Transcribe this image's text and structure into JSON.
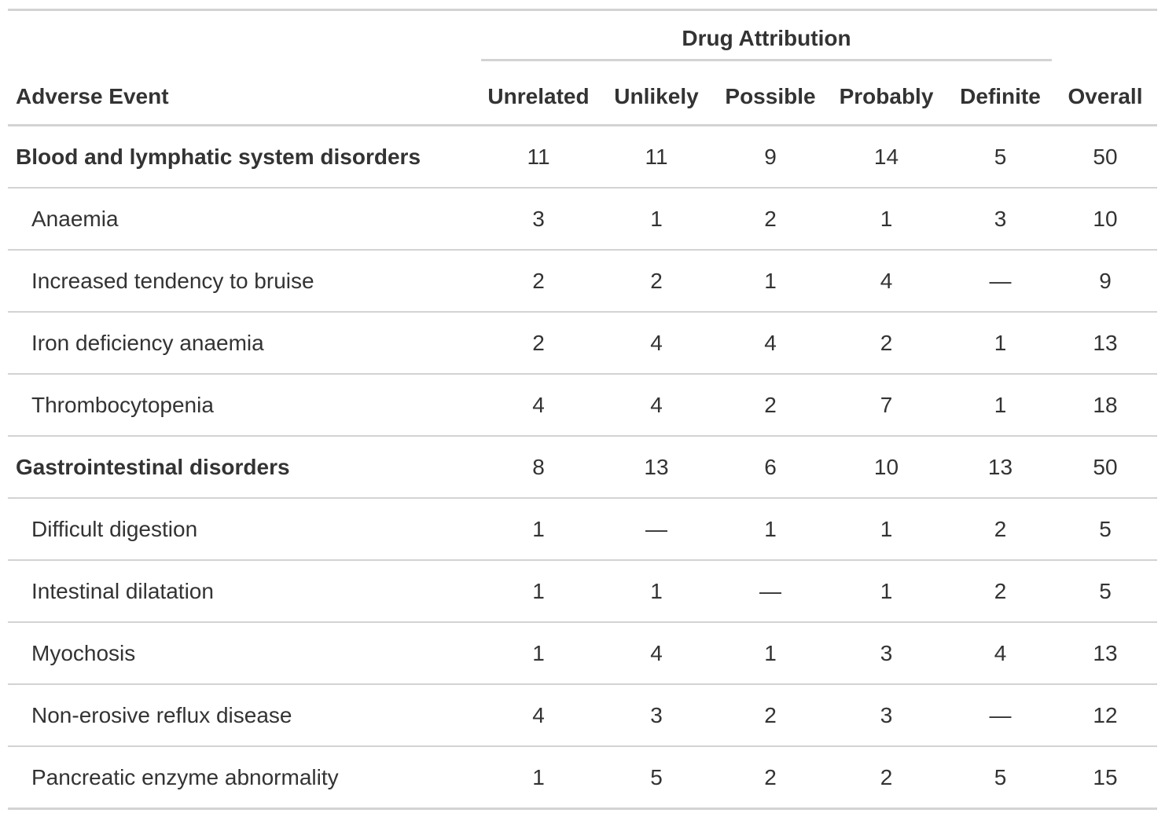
{
  "table": {
    "stub_header": "Adverse Event",
    "spanner": "Drug Attribution",
    "columns": [
      "Unrelated",
      "Unlikely",
      "Possible",
      "Probably",
      "Definite",
      "Overall"
    ],
    "groups": [
      {
        "label": "Blood and lymphatic system disorders",
        "values": [
          11,
          11,
          9,
          14,
          5,
          50
        ],
        "rows": [
          {
            "label": "Anaemia",
            "values": [
              3,
              1,
              2,
              1,
              3,
              10
            ]
          },
          {
            "label": "Increased tendency to bruise",
            "values": [
              2,
              2,
              1,
              4,
              "—",
              9
            ]
          },
          {
            "label": "Iron deficiency anaemia",
            "values": [
              2,
              4,
              4,
              2,
              1,
              13
            ]
          },
          {
            "label": "Thrombocytopenia",
            "values": [
              4,
              4,
              2,
              7,
              1,
              18
            ]
          }
        ]
      },
      {
        "label": "Gastrointestinal disorders",
        "values": [
          8,
          13,
          6,
          10,
          13,
          50
        ],
        "rows": [
          {
            "label": "Difficult digestion",
            "values": [
              1,
              "—",
              1,
              1,
              2,
              5
            ]
          },
          {
            "label": "Intestinal dilatation",
            "values": [
              1,
              1,
              "—",
              1,
              2,
              5
            ]
          },
          {
            "label": "Myochosis",
            "values": [
              1,
              4,
              1,
              3,
              4,
              13
            ]
          },
          {
            "label": "Non-erosive reflux disease",
            "values": [
              4,
              3,
              2,
              3,
              "—",
              12
            ]
          },
          {
            "label": "Pancreatic enzyme abnormality",
            "values": [
              1,
              5,
              2,
              2,
              5,
              15
            ]
          }
        ]
      }
    ]
  }
}
